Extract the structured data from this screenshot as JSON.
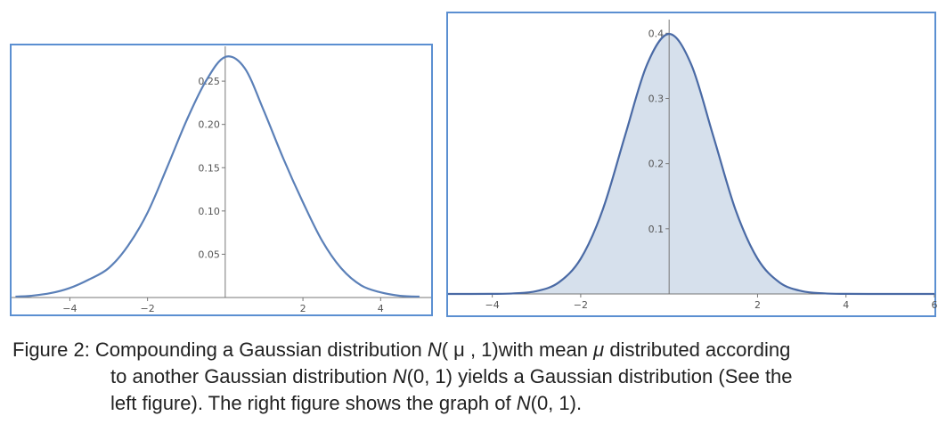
{
  "chart_data": [
    {
      "type": "line",
      "xlim": [
        -5.5,
        5.3
      ],
      "ylim": [
        0,
        0.282
      ],
      "x_ticks": [
        -4,
        -2,
        2,
        4
      ],
      "x_tick_labels": [
        "−4",
        "−2",
        "2",
        "4"
      ],
      "y_ticks": [
        0.05,
        0.1,
        0.15,
        0.2,
        0.25
      ],
      "y_tick_labels": [
        "0.05",
        "0.10",
        "0.15",
        "0.20",
        "0.25"
      ],
      "fill": false,
      "line_color": "#5b80b8",
      "grid": false,
      "series": [
        {
          "x": [
            -5.4,
            -5.0,
            -4.5,
            -4.0,
            -3.5,
            -3.0,
            -2.5,
            -2.0,
            -1.5,
            -1.0,
            -0.5,
            0.0,
            0.5,
            1.0,
            1.5,
            2.0,
            2.5,
            3.0,
            3.5,
            4.0,
            4.5,
            5.0
          ],
          "y": [
            0.001,
            0.002,
            0.005,
            0.011,
            0.021,
            0.034,
            0.06,
            0.098,
            0.15,
            0.204,
            0.25,
            0.278,
            0.265,
            0.215,
            0.16,
            0.11,
            0.065,
            0.033,
            0.014,
            0.006,
            0.002,
            0.001
          ]
        }
      ]
    },
    {
      "type": "area",
      "xlim": [
        -5,
        6
      ],
      "ylim": [
        0,
        0.41
      ],
      "x_ticks": [
        -4,
        -2,
        2,
        4,
        6
      ],
      "x_tick_labels": [
        "−4",
        "−2",
        "2",
        "4",
        "6"
      ],
      "y_ticks": [
        0.1,
        0.2,
        0.3,
        0.4
      ],
      "y_tick_labels": [
        "0.1",
        "0.2",
        "0.3",
        "0.4"
      ],
      "fill": true,
      "line_color": "#4a6aa5",
      "fill_color": "#d6e0ec",
      "grid": false,
      "series": [
        {
          "x": [
            -5.0,
            -4.5,
            -4.0,
            -3.5,
            -3.0,
            -2.5,
            -2.0,
            -1.5,
            -1.0,
            -0.5,
            0.0,
            0.5,
            1.0,
            1.5,
            2.0,
            2.5,
            3.0,
            3.5,
            4.0,
            4.5,
            5.0,
            5.5,
            6.0
          ],
          "y": [
            0.0,
            0.0,
            0.0001,
            0.0009,
            0.0044,
            0.0175,
            0.054,
            0.1295,
            0.242,
            0.3521,
            0.3989,
            0.3521,
            0.242,
            0.1295,
            0.054,
            0.0175,
            0.0044,
            0.0009,
            0.0001,
            0.0,
            0.0,
            0.0,
            0.0
          ]
        }
      ]
    }
  ],
  "caption": {
    "label": "Figure 2:",
    "line1_a": "Compounding a Gaussian distribution ",
    "line1_n": "N",
    "line1_b": "( μ , 1)with mean ",
    "line1_mu": "μ",
    "line1_c": " distributed according",
    "line2_a": "to another Gaussian distribution ",
    "line2_n": "N",
    "line2_b": "(0, 1) yields a Gaussian distribution (See the",
    "line3_a": "left figure). The right figure shows the graph of ",
    "line3_n": "N",
    "line3_b": "(0, 1)."
  }
}
